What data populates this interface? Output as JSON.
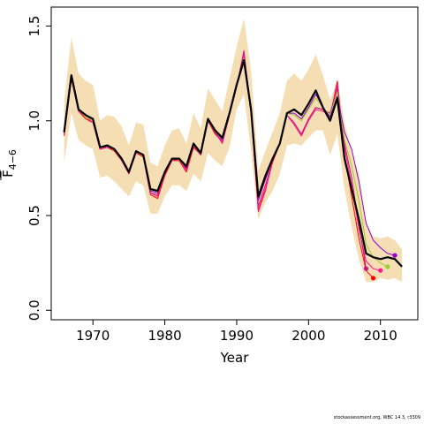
{
  "chart_data": {
    "type": "line",
    "xlabel": "Year",
    "ylabel": "F",
    "ylabel_subscript": "4−6",
    "xlim": [
      1964.2,
      2015.2
    ],
    "ylim": [
      -0.05,
      1.6
    ],
    "x_ticks": [
      1970,
      1980,
      1990,
      2000,
      2010
    ],
    "y_ticks": [
      0.0,
      0.5,
      1.0,
      1.5
    ],
    "y_tick_labels": [
      "0.0",
      "0.5",
      "1.0",
      "1.5"
    ],
    "grid": false,
    "legend": "none",
    "colors": {
      "band": "#f5deb3",
      "main": "#000000",
      "retro": [
        "#ff0000",
        "#ff1493",
        "#c71585",
        "#9acd32",
        "#9400d3"
      ]
    },
    "confidence_band": {
      "x": [
        1966,
        1967,
        1968,
        1969,
        1970,
        1971,
        1972,
        1973,
        1974,
        1975,
        1976,
        1977,
        1978,
        1979,
        1980,
        1981,
        1982,
        1983,
        1984,
        1985,
        1986,
        1987,
        1988,
        1989,
        1990,
        1991,
        1992,
        1993,
        1994,
        1995,
        1996,
        1997,
        1998,
        1999,
        2000,
        2001,
        2002,
        2003,
        2004,
        2005,
        2006,
        2007,
        2008,
        2009,
        2010,
        2011,
        2012,
        2013
      ],
      "lower": [
        0.78,
        1.04,
        0.9,
        0.87,
        0.85,
        0.7,
        0.71,
        0.68,
        0.64,
        0.6,
        0.68,
        0.66,
        0.51,
        0.51,
        0.6,
        0.66,
        0.66,
        0.63,
        0.72,
        0.68,
        0.83,
        0.79,
        0.76,
        0.86,
        1.06,
        1.14,
        0.84,
        0.48,
        0.57,
        0.63,
        0.72,
        0.87,
        0.88,
        0.87,
        0.91,
        0.95,
        0.95,
        0.82,
        0.93,
        0.64,
        0.44,
        0.27,
        0.15,
        0.15,
        0.17,
        0.16,
        0.17,
        0.15
      ],
      "upper": [
        1.1,
        1.44,
        1.25,
        1.21,
        1.19,
        1.0,
        1.03,
        1.02,
        0.97,
        0.87,
        0.99,
        0.98,
        0.78,
        0.76,
        0.87,
        0.95,
        0.96,
        0.88,
        1.04,
        0.96,
        1.17,
        1.11,
        1.05,
        1.22,
        1.39,
        1.54,
        1.27,
        0.74,
        0.84,
        0.94,
        1.04,
        1.21,
        1.25,
        1.21,
        1.27,
        1.35,
        1.24,
        1.11,
        1.21,
        0.99,
        0.83,
        0.72,
        0.46,
        0.39,
        0.38,
        0.39,
        0.37,
        0.32
      ]
    },
    "series": [
      {
        "x": [
          1966,
          1967,
          1968,
          1969,
          1970,
          1971,
          1972,
          1973,
          1974,
          1975,
          1976,
          1977,
          1978,
          1979,
          1980,
          1981,
          1982,
          1983,
          1984,
          1985,
          1986,
          1987,
          1988,
          1989,
          1990,
          1991,
          1992,
          1993,
          1994,
          1995,
          1996,
          1997,
          1998,
          1999,
          2000,
          2001,
          2002,
          2003,
          2004,
          2005,
          2006,
          2007,
          2008,
          2009,
          2010,
          2011,
          2012,
          2013
        ],
        "y": [
          0.94,
          1.24,
          1.06,
          1.03,
          1.01,
          0.86,
          0.87,
          0.85,
          0.8,
          0.73,
          0.84,
          0.82,
          0.64,
          0.63,
          0.73,
          0.8,
          0.8,
          0.76,
          0.88,
          0.83,
          1.01,
          0.95,
          0.91,
          1.04,
          1.19,
          1.32,
          1.06,
          0.6,
          0.71,
          0.8,
          0.88,
          1.04,
          1.06,
          1.03,
          1.09,
          1.16,
          1.07,
          1.0,
          1.12,
          0.8,
          0.64,
          0.48,
          0.3,
          0.28,
          0.27,
          0.28,
          0.27,
          0.23
        ]
      },
      {
        "x": [
          1966,
          1967,
          1968,
          1969,
          1970,
          1971,
          1972,
          1973,
          1974,
          1975,
          1976,
          1977,
          1978,
          1979,
          1980,
          1981,
          1982,
          1983,
          1984,
          1985,
          1986,
          1987,
          1988,
          1989,
          1990,
          1991,
          1992,
          1993,
          1994,
          1995,
          1996,
          1997,
          1998,
          1999,
          2000,
          2001,
          2002,
          2003,
          2004,
          2005,
          2006,
          2007,
          2008,
          2009
        ],
        "y": [
          0.92,
          1.22,
          1.05,
          1.01,
          0.99,
          0.85,
          0.86,
          0.84,
          0.79,
          0.72,
          0.83,
          0.81,
          0.61,
          0.59,
          0.71,
          0.79,
          0.79,
          0.73,
          0.86,
          0.82,
          1.0,
          0.93,
          0.89,
          1.03,
          1.18,
          1.31,
          1.04,
          0.53,
          0.64,
          0.78,
          0.88,
          1.03,
          0.98,
          0.92,
          1.01,
          1.07,
          1.06,
          1.02,
          1.21,
          0.82,
          0.6,
          0.38,
          0.21,
          0.17
        ]
      },
      {
        "x": [
          1966,
          1967,
          1968,
          1969,
          1970,
          1971,
          1972,
          1973,
          1974,
          1975,
          1976,
          1977,
          1978,
          1979,
          1980,
          1981,
          1982,
          1983,
          1984,
          1985,
          1986,
          1987,
          1988,
          1989,
          1990,
          1991,
          1992,
          1993,
          1994,
          1995,
          1996,
          1997,
          1998,
          1999,
          2000,
          2001,
          2002,
          2003,
          2004,
          2005,
          2006,
          2007,
          2008,
          2009,
          2010
        ],
        "y": [
          0.93,
          1.23,
          1.05,
          1.02,
          0.99,
          0.85,
          0.86,
          0.85,
          0.79,
          0.72,
          0.84,
          0.82,
          0.62,
          0.6,
          0.72,
          0.79,
          0.8,
          0.74,
          0.87,
          0.82,
          1.0,
          0.94,
          0.88,
          1.03,
          1.18,
          1.35,
          1.05,
          0.52,
          0.63,
          0.79,
          0.88,
          1.03,
          0.98,
          0.92,
          1.0,
          1.06,
          1.05,
          1.03,
          1.19,
          0.86,
          0.66,
          0.43,
          0.26,
          0.22,
          0.21
        ]
      },
      {
        "x": [
          1966,
          1967,
          1968,
          1969,
          1970,
          1971,
          1972,
          1973,
          1974,
          1975,
          1976,
          1977,
          1978,
          1979,
          1980,
          1981,
          1982,
          1983,
          1984,
          1985,
          1986,
          1987,
          1988,
          1989,
          1990,
          1991,
          1992,
          1993,
          1994,
          1995,
          1996,
          1997,
          1998,
          1999,
          2000,
          2001,
          2002,
          2003,
          2004,
          2005,
          2006,
          2007,
          2008
        ],
        "y": [
          0.93,
          1.23,
          1.06,
          1.02,
          1.0,
          0.86,
          0.86,
          0.85,
          0.8,
          0.73,
          0.84,
          0.82,
          0.62,
          0.61,
          0.72,
          0.8,
          0.8,
          0.75,
          0.87,
          0.82,
          1.01,
          0.94,
          0.89,
          1.03,
          1.18,
          1.37,
          1.05,
          0.55,
          0.66,
          0.79,
          0.88,
          1.03,
          0.99,
          0.93,
          1.01,
          1.07,
          1.06,
          1.04,
          1.17,
          0.88,
          0.7,
          0.45,
          0.22
        ]
      },
      {
        "x": [
          1966,
          1967,
          1968,
          1969,
          1970,
          1971,
          1972,
          1973,
          1974,
          1975,
          1976,
          1977,
          1978,
          1979,
          1980,
          1981,
          1982,
          1983,
          1984,
          1985,
          1986,
          1987,
          1988,
          1989,
          1990,
          1991,
          1992,
          1993,
          1994,
          1995,
          1996,
          1997,
          1998,
          1999,
          2000,
          2001,
          2002,
          2003,
          2004,
          2005,
          2006,
          2007,
          2008,
          2009,
          2010,
          2011
        ],
        "y": [
          0.94,
          1.23,
          1.06,
          1.02,
          1.0,
          0.86,
          0.87,
          0.85,
          0.8,
          0.73,
          0.84,
          0.82,
          0.63,
          0.62,
          0.73,
          0.8,
          0.8,
          0.76,
          0.88,
          0.83,
          1.01,
          0.95,
          0.9,
          1.04,
          1.19,
          1.33,
          1.06,
          0.58,
          0.69,
          0.8,
          0.88,
          1.04,
          1.03,
          1.0,
          1.06,
          1.12,
          1.07,
          1.03,
          1.15,
          0.9,
          0.76,
          0.58,
          0.35,
          0.28,
          0.25,
          0.23
        ]
      },
      {
        "x": [
          1966,
          1967,
          1968,
          1969,
          1970,
          1971,
          1972,
          1973,
          1974,
          1975,
          1976,
          1977,
          1978,
          1979,
          1980,
          1981,
          1982,
          1983,
          1984,
          1985,
          1986,
          1987,
          1988,
          1989,
          1990,
          1991,
          1992,
          1993,
          1994,
          1995,
          1996,
          1997,
          1998,
          1999,
          2000,
          2001,
          2002,
          2003,
          2004,
          2005,
          2006,
          2007,
          2008,
          2009,
          2010,
          2011,
          2012
        ],
        "y": [
          0.94,
          1.24,
          1.06,
          1.03,
          1.01,
          0.86,
          0.87,
          0.85,
          0.8,
          0.73,
          0.84,
          0.82,
          0.63,
          0.62,
          0.73,
          0.8,
          0.8,
          0.75,
          0.88,
          0.83,
          1.01,
          0.95,
          0.9,
          1.04,
          1.19,
          1.32,
          1.06,
          0.58,
          0.69,
          0.8,
          0.88,
          1.04,
          1.04,
          1.01,
          1.07,
          1.14,
          1.07,
          1.02,
          1.13,
          0.94,
          0.85,
          0.68,
          0.46,
          0.37,
          0.33,
          0.3,
          0.29
        ]
      }
    ],
    "endpoints": [
      {
        "x": 2009,
        "y": 0.17
      },
      {
        "x": 2010,
        "y": 0.21
      },
      {
        "x": 2008,
        "y": 0.22
      },
      {
        "x": 2011,
        "y": 0.23
      },
      {
        "x": 2012,
        "y": 0.29
      }
    ]
  },
  "footer": {
    "credit": "stockassessment.org,  WBC 14 3, r3309"
  }
}
